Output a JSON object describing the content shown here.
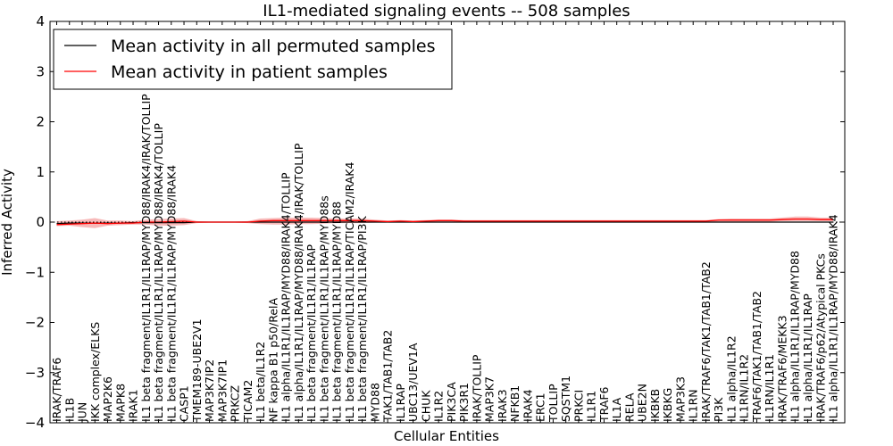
{
  "chart_data": {
    "type": "line",
    "title": "IL1-mediated signaling events -- 508 samples",
    "xlabel": "Cellular Entities",
    "ylabel": "Inferred Activity",
    "ylim": [
      -4,
      4
    ],
    "yticks": [
      -4,
      -3,
      -2,
      -1,
      0,
      1,
      2,
      3,
      4
    ],
    "ytick_labels": [
      "−4",
      "−3",
      "−2",
      "−1",
      "0",
      "1",
      "2",
      "3",
      "4"
    ],
    "legend_position": "top-left",
    "categories": [
      "IRAK/TRAF6",
      "IL1B",
      "JUN",
      "IKK complex/ELKS",
      "MAP2K6",
      "MAPK8",
      "IRAK1",
      "IL1 beta fragment/IL1R1/IL1RAP/MYD88/IRAK4/IRAK/TOLLIP",
      "IL1 beta fragment/IL1R1/IL1RAP/MYD88/IRAK4/TOLLIP",
      "IL1 beta fragment/IL1R1/IL1RAP/MYD88/IRAK4",
      "CASP1",
      "TMEM189-UBE2V1",
      "MAP3K7IP2",
      "MAP3K7IP1",
      "PRKCZ",
      "TICAM2",
      "IL1 beta/IL1R2",
      "NF kappa B1 p50/RelA",
      "IL1 alpha/IL1R1/IL1RAP/MYD88/IRAK4/TOLLIP",
      "IL1 alpha/IL1R1/IL1RAP/MYD88/IRAK4/IRAK/TOLLIP",
      "IL1 beta fragment/IL1R1/IL1RAP",
      "IL1 beta fragment/IL1R1/IL1RAP/MYD88s",
      "IL1 beta fragment/IL1R1/IL1RAP/MYD88",
      "IL1 beta fragment/IL1R1/IL1RAP/TICAM2/IRAK4",
      "IL1 beta fragment/IL1R1/IL1RAP/PI3K",
      "MYD88",
      "TAK1/TAB1/TAB2",
      "IL1RAP",
      "UBC13/UEV1A",
      "CHUK",
      "IL1R2",
      "PIK3CA",
      "PIK3R1",
      "IRAK/TOLLIP",
      "MAP3K7",
      "IRAK3",
      "NFKB1",
      "IRAK4",
      "ERC1",
      "TOLLIP",
      "SQSTM1",
      "PRKCI",
      "IL1R1",
      "TRAF6",
      "IL1A",
      "RELA",
      "UBE2N",
      "IKBKB",
      "IKBKG",
      "MAP3K3",
      "IL1RN",
      "IRAK/TRAF6/TAK1/TAB1/TAB2",
      "PI3K",
      "IL1 alpha/IL1R2",
      "IL1RN/IL1R2",
      "TRAF6/TAK1/TAB1/TAB2",
      "IL1RN/IL1R1",
      "IRAK/TRAF6/MEKK3",
      "IL1 alpha/IL1R1/IL1RAP/MYD88",
      "IL1 alpha/IL1R1/IL1RAP",
      "IRAK/TRAF6/p62/Atypical PKCs",
      "IL1 alpha/IL1R1/IL1RAP/MYD88/IRAK4"
    ],
    "series": [
      {
        "name": "Mean activity in all permuted samples",
        "color": "#000000",
        "values": [
          -0.03,
          -0.02,
          -0.02,
          -0.02,
          -0.02,
          -0.02,
          -0.01,
          -0.01,
          -0.01,
          -0.01,
          -0.01,
          0,
          0,
          0,
          0,
          0,
          0,
          0,
          0,
          0,
          0,
          0,
          0,
          0,
          0,
          0,
          0,
          0,
          0,
          0,
          0,
          0,
          0,
          0,
          0,
          0,
          0,
          0,
          0,
          0,
          0,
          0,
          0,
          0,
          0,
          0,
          0,
          0,
          0,
          0,
          0,
          0,
          0,
          0,
          0,
          0,
          0,
          0,
          0,
          0,
          0,
          0
        ]
      },
      {
        "name": "Mean activity in patient samples",
        "color": "#ff0000",
        "values": [
          -0.05,
          -0.04,
          -0.03,
          -0.02,
          -0.03,
          -0.02,
          -0.02,
          0,
          0,
          0.01,
          0.02,
          0,
          0,
          0,
          0,
          0,
          0.02,
          0.03,
          0.03,
          0.03,
          0.03,
          0.03,
          0.03,
          0.03,
          0.03,
          0.02,
          0.01,
          0.02,
          0.01,
          0.02,
          0.03,
          0.03,
          0.02,
          0.02,
          0.02,
          0.02,
          0.02,
          0.02,
          0.02,
          0.02,
          0.02,
          0.02,
          0.02,
          0.02,
          0.02,
          0.02,
          0.02,
          0.02,
          0.02,
          0.02,
          0.02,
          0.02,
          0.04,
          0.04,
          0.04,
          0.04,
          0.04,
          0.05,
          0.06,
          0.06,
          0.05,
          0.05
        ]
      }
    ],
    "band": {
      "name": "patient samples spread",
      "color": "#f08080",
      "upper": [
        0.02,
        0.03,
        0.05,
        0.08,
        0.03,
        0.03,
        0.02,
        0.05,
        0.06,
        0.07,
        0.08,
        0.02,
        0.01,
        0.01,
        0.01,
        0.02,
        0.07,
        0.08,
        0.09,
        0.09,
        0.09,
        0.08,
        0.07,
        0.07,
        0.07,
        0.05,
        0.03,
        0.04,
        0.03,
        0.04,
        0.05,
        0.05,
        0.04,
        0.04,
        0.04,
        0.04,
        0.04,
        0.04,
        0.04,
        0.04,
        0.04,
        0.04,
        0.04,
        0.04,
        0.04,
        0.04,
        0.04,
        0.04,
        0.04,
        0.04,
        0.04,
        0.04,
        0.06,
        0.07,
        0.07,
        0.07,
        0.07,
        0.09,
        0.11,
        0.11,
        0.09,
        0.09
      ],
      "lower": [
        -0.08,
        -0.07,
        -0.1,
        -0.12,
        -0.07,
        -0.06,
        -0.05,
        -0.05,
        -0.07,
        -0.07,
        -0.06,
        -0.02,
        -0.01,
        -0.01,
        -0.01,
        -0.02,
        -0.04,
        -0.05,
        -0.05,
        -0.04,
        -0.04,
        -0.03,
        -0.02,
        -0.02,
        -0.02,
        -0.01,
        -0.01,
        -0.01,
        -0.01,
        0,
        0.01,
        0.01,
        0,
        0,
        0,
        0,
        0,
        0,
        0,
        0,
        0,
        0,
        0,
        0,
        0,
        0,
        0,
        0,
        0,
        0,
        0,
        0,
        0.01,
        0.01,
        0.01,
        0.01,
        0.01,
        0.02,
        0.02,
        0.02,
        0.02,
        0.02
      ]
    },
    "zero_line": {
      "style": "dotted",
      "color": "#000000"
    }
  }
}
